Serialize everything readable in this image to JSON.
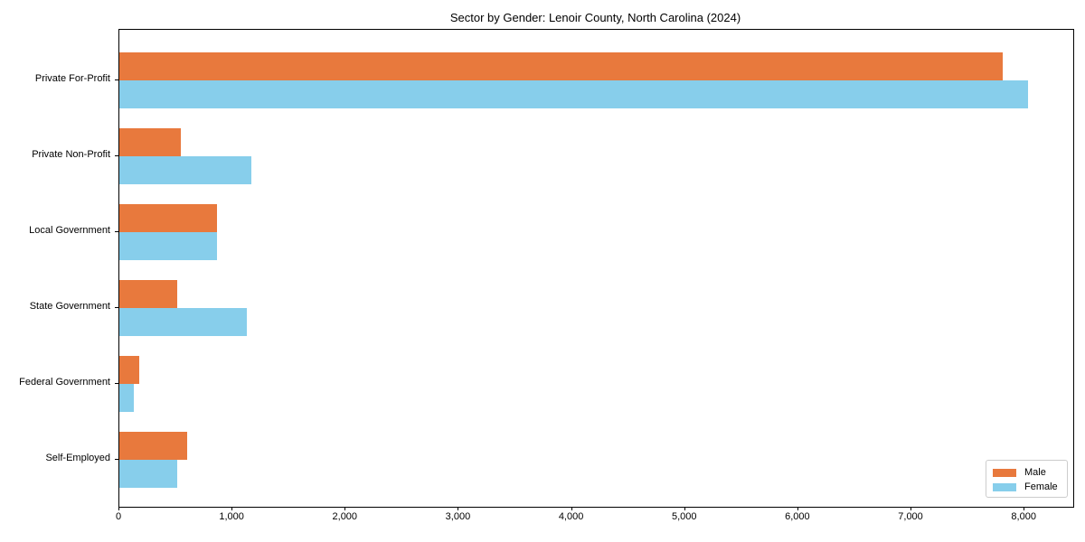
{
  "chart_data": {
    "type": "bar",
    "orientation": "horizontal",
    "title": "Sector by Gender: Lenoir County, North Carolina (2024)",
    "categories": [
      "Private For-Profit",
      "Private Non-Profit",
      "Local Government",
      "State Government",
      "Federal Government",
      "Self-Employed"
    ],
    "series": [
      {
        "name": "Male",
        "color": "#e8793d",
        "values": [
          7810,
          545,
          865,
          510,
          178,
          600
        ]
      },
      {
        "name": "Female",
        "color": "#87ceeb",
        "values": [
          8030,
          1165,
          860,
          1130,
          130,
          515
        ]
      }
    ],
    "xlabel": "",
    "ylabel": "",
    "xlim": [
      0,
      8430
    ],
    "xticks": [
      0,
      1000,
      2000,
      3000,
      4000,
      5000,
      6000,
      7000,
      8000
    ],
    "xtick_labels": [
      "0",
      "1,000",
      "2,000",
      "3,000",
      "4,000",
      "5,000",
      "6,000",
      "7,000",
      "8,000"
    ],
    "grid": false,
    "legend_position": "lower right",
    "colors": {
      "male": "#e8793d",
      "female": "#87ceeb",
      "axis": "#000000",
      "background": "#ffffff",
      "legend_border": "#cccccc"
    }
  }
}
